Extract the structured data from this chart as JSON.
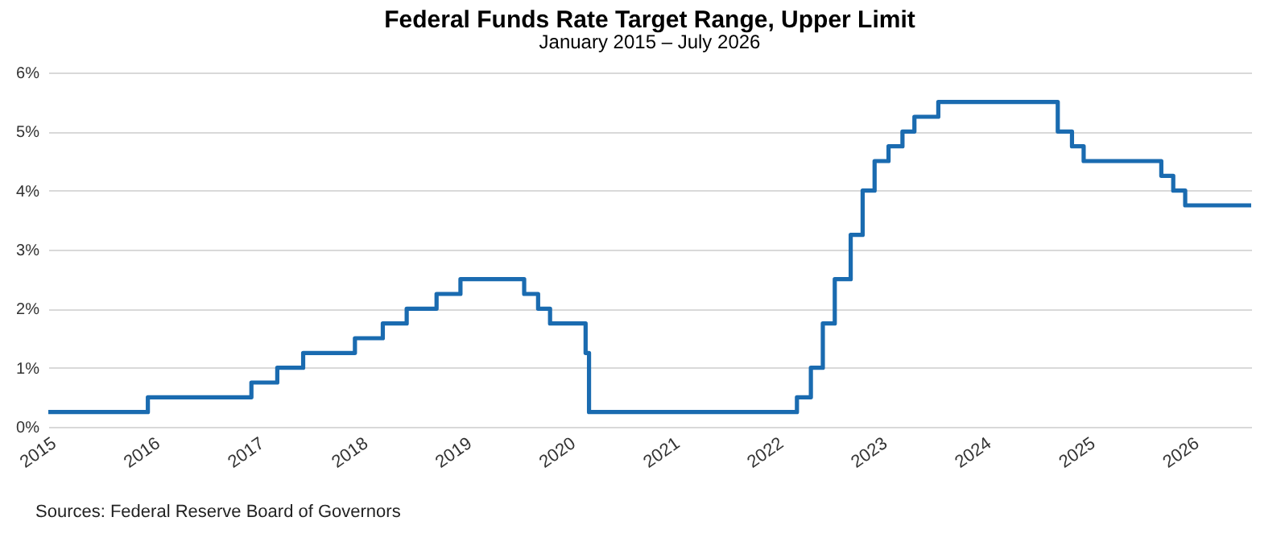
{
  "chart_data": {
    "type": "step",
    "title": "Federal Funds Rate Target Range, Upper Limit",
    "subtitle": "January 2015 – July 2026",
    "annotations": [
      "Sources: Federal Reserve Board of Governors"
    ],
    "x": [
      "2015-01-01",
      "2015-12-17",
      "2016-12-15",
      "2017-03-16",
      "2017-06-15",
      "2017-12-14",
      "2018-03-22",
      "2018-06-14",
      "2018-09-27",
      "2018-12-20",
      "2019-08-01",
      "2019-09-19",
      "2019-10-31",
      "2020-03-04",
      "2020-03-16",
      "2022-03-17",
      "2022-05-05",
      "2022-06-16",
      "2022-07-28",
      "2022-09-22",
      "2022-11-03",
      "2022-12-15",
      "2023-02-02",
      "2023-03-23",
      "2023-05-04",
      "2023-07-27",
      "2024-09-19",
      "2024-11-08",
      "2024-12-19",
      "2025-09-18",
      "2025-10-30",
      "2025-12-11",
      "2026-07-31"
    ],
    "series": [
      {
        "color": "#1a6bb0",
        "values": [
          0.25,
          0.5,
          0.75,
          1.0,
          1.25,
          1.5,
          1.75,
          2.0,
          2.25,
          2.5,
          2.25,
          2.0,
          1.75,
          1.25,
          0.25,
          0.5,
          1.0,
          1.75,
          2.5,
          3.25,
          4.0,
          4.5,
          4.75,
          5.0,
          5.25,
          5.5,
          5.0,
          4.75,
          4.5,
          4.25,
          4.0,
          3.75,
          3.75
        ]
      }
    ],
    "xlim": [
      "2015-01-01",
      "2026-07-31"
    ],
    "xticks": [
      "2015",
      "2016",
      "2017",
      "2018",
      "2019",
      "2020",
      "2021",
      "2022",
      "2023",
      "2024",
      "2025",
      "2026"
    ],
    "ylim": [
      0,
      6
    ],
    "yticks": [
      {
        "value": 0,
        "label": "0%"
      },
      {
        "value": 1,
        "label": "1%"
      },
      {
        "value": 2,
        "label": "2%"
      },
      {
        "value": 3,
        "label": "3%"
      },
      {
        "value": 4,
        "label": "4%"
      },
      {
        "value": 5,
        "label": "5%"
      },
      {
        "value": 6,
        "label": "6%"
      }
    ],
    "grid": "y",
    "marker": "none",
    "line_style": "solid"
  }
}
